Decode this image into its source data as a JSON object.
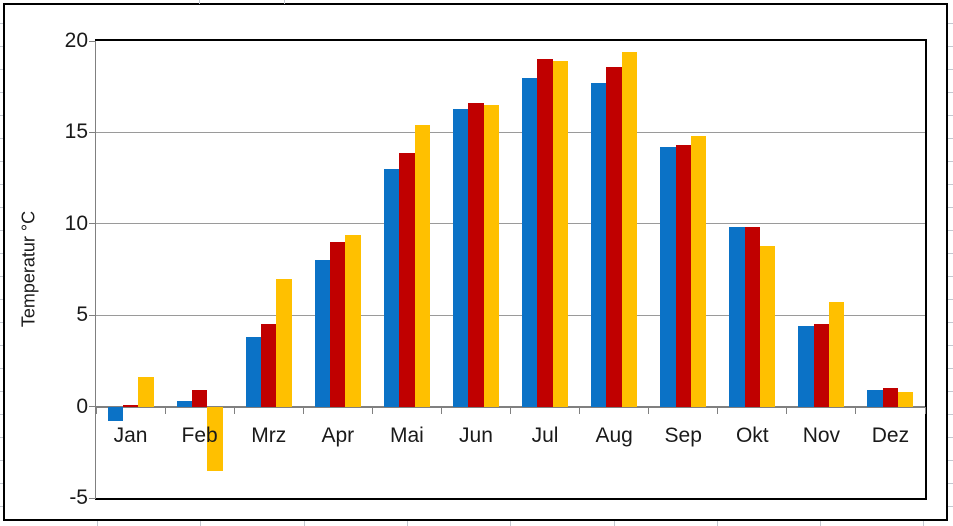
{
  "chart_data": {
    "type": "bar",
    "title": "",
    "xlabel": "",
    "ylabel": "Temperatur °C",
    "categories": [
      "Jan",
      "Feb",
      "Mrz",
      "Apr",
      "Mai",
      "Jun",
      "Jul",
      "Aug",
      "Sep",
      "Okt",
      "Nov",
      "Dez"
    ],
    "series": [
      {
        "name": "series-1-blue",
        "color": "#0b72c6",
        "values": [
          -0.8,
          0.3,
          3.8,
          8.0,
          13.0,
          16.3,
          18.0,
          17.7,
          14.2,
          9.8,
          4.4,
          0.9
        ]
      },
      {
        "name": "series-2-red",
        "color": "#c00000",
        "values": [
          0.1,
          0.9,
          4.5,
          9.0,
          13.9,
          16.6,
          19.0,
          18.6,
          14.3,
          9.8,
          4.5,
          1.0
        ]
      },
      {
        "name": "series-3-yellow",
        "color": "#ffc000",
        "values": [
          1.6,
          -3.5,
          7.0,
          9.4,
          15.4,
          16.5,
          18.9,
          19.4,
          14.8,
          8.8,
          5.7,
          0.8
        ]
      }
    ],
    "y_axis": {
      "min": -5,
      "max": 20,
      "step": 5,
      "tick_labels": [
        "20",
        "15",
        "10",
        "5",
        "0",
        "-5"
      ]
    },
    "legend": "none",
    "gridlines": true,
    "gridline_values": [
      15,
      10,
      5
    ]
  },
  "colors": {
    "series_blue": "#0b72c6",
    "series_red": "#c00000",
    "series_yellow": "#ffc000",
    "gridline": "#9a9a9a",
    "axis": "#808080",
    "plot_border": "#000000",
    "chart_border": "#000000"
  }
}
